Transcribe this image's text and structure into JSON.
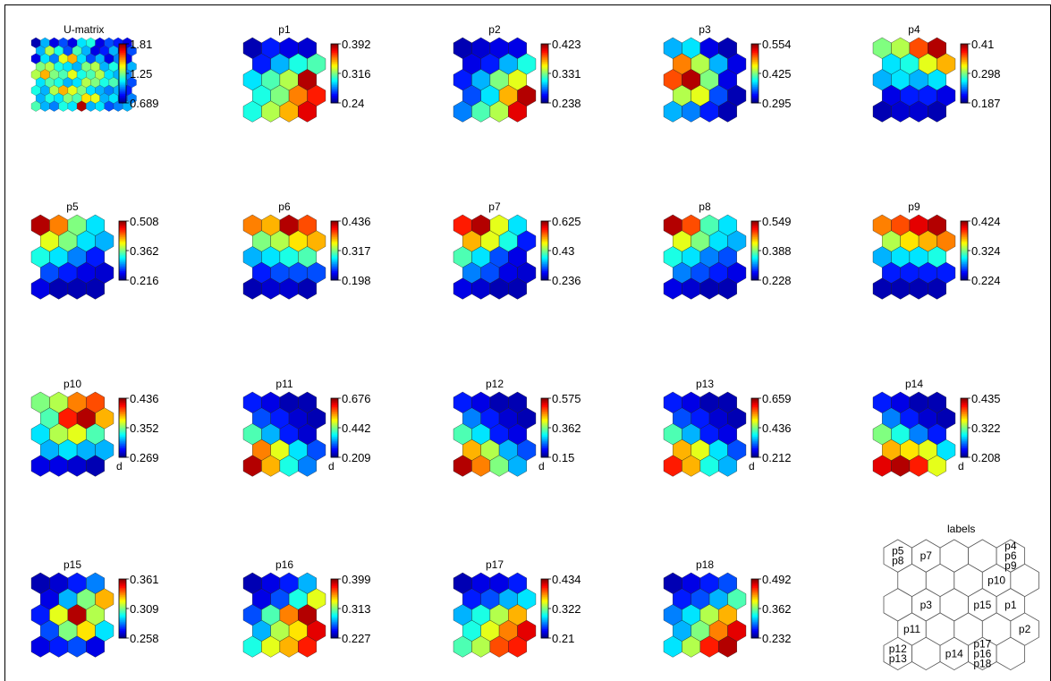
{
  "figure": {
    "colormap": "jet",
    "hex_outline": "#1a1a1a",
    "label_outline": "#555555"
  },
  "chart_data": [
    {
      "type": "heatmap",
      "title": "U-matrix",
      "colorbar_ticks": [
        "1.81",
        "1.25",
        "0.689"
      ],
      "range": [
        0.689,
        1.81
      ],
      "extra_label": "",
      "rows": 9,
      "cols": 11,
      "values": [
        [
          0.05,
          0.3,
          0.1,
          0.2,
          0.1,
          0.35,
          0.4,
          0.1,
          0.2,
          0.15,
          0.1
        ],
        [
          0.3,
          0.55,
          0.4,
          0.2,
          0.45,
          0.3,
          0.1,
          0.15,
          0.3,
          0.1,
          0.2
        ],
        [
          0.1,
          0.35,
          0.25,
          0.6,
          0.7,
          0.35,
          0.2,
          0.3,
          0.1,
          0.25,
          0.1
        ],
        [
          0.5,
          0.55,
          0.4,
          0.35,
          0.3,
          0.5,
          0.55,
          0.3,
          0.4,
          0.2,
          0.3
        ],
        [
          0.55,
          0.7,
          0.5,
          0.45,
          0.6,
          0.4,
          0.45,
          0.55,
          0.35,
          0.3,
          0.25
        ],
        [
          0.35,
          0.45,
          0.4,
          0.3,
          0.35,
          0.55,
          0.5,
          0.4,
          0.45,
          0.3,
          0.2
        ],
        [
          0.4,
          0.3,
          0.55,
          0.7,
          0.6,
          0.5,
          0.35,
          0.3,
          0.25,
          0.3,
          0.15
        ],
        [
          0.3,
          0.4,
          0.35,
          0.5,
          0.45,
          0.65,
          0.6,
          0.3,
          0.35,
          0.2,
          0.25
        ],
        [
          0.45,
          0.3,
          0.25,
          0.4,
          0.35,
          0.95,
          0.3,
          0.35,
          0.2,
          0.25,
          0.3
        ]
      ]
    },
    {
      "type": "heatmap",
      "title": "p1",
      "colorbar_ticks": [
        "0.392",
        "0.316",
        "0.24"
      ],
      "range": [
        0.24,
        0.392
      ],
      "extra_label": "",
      "rows": 5,
      "cols": 4,
      "values": [
        [
          0.05,
          0.15,
          0.1,
          0.08
        ],
        [
          0.15,
          0.3,
          0.4,
          0.45
        ],
        [
          0.35,
          0.45,
          0.55,
          0.95
        ],
        [
          0.4,
          0.5,
          0.75,
          0.85
        ],
        [
          0.4,
          0.55,
          0.7,
          0.9
        ]
      ]
    },
    {
      "type": "heatmap",
      "title": "p2",
      "colorbar_ticks": [
        "0.423",
        "0.331",
        "0.238"
      ],
      "range": [
        0.238,
        0.423
      ],
      "extra_label": "",
      "rows": 5,
      "cols": 4,
      "values": [
        [
          0.05,
          0.08,
          0.1,
          0.1
        ],
        [
          0.1,
          0.15,
          0.3,
          0.4
        ],
        [
          0.15,
          0.3,
          0.5,
          0.6
        ],
        [
          0.2,
          0.35,
          0.7,
          0.95
        ],
        [
          0.25,
          0.45,
          0.55,
          0.9
        ]
      ]
    },
    {
      "type": "heatmap",
      "title": "p3",
      "colorbar_ticks": [
        "0.554",
        "0.425",
        "0.295"
      ],
      "range": [
        0.295,
        0.554
      ],
      "extra_label": "",
      "rows": 5,
      "cols": 4,
      "values": [
        [
          0.3,
          0.35,
          0.1,
          0.05
        ],
        [
          0.75,
          0.55,
          0.3,
          0.1
        ],
        [
          0.8,
          0.95,
          0.5,
          0.1
        ],
        [
          0.55,
          0.6,
          0.2,
          0.05
        ],
        [
          0.3,
          0.25,
          0.15,
          0.05
        ]
      ]
    },
    {
      "type": "heatmap",
      "title": "p4",
      "colorbar_ticks": [
        "0.41",
        "0.298",
        "0.187"
      ],
      "range": [
        0.187,
        0.41
      ],
      "extra_label": "",
      "rows": 5,
      "cols": 4,
      "values": [
        [
          0.5,
          0.55,
          0.8,
          0.95
        ],
        [
          0.35,
          0.4,
          0.6,
          0.7
        ],
        [
          0.3,
          0.35,
          0.3,
          0.35
        ],
        [
          0.1,
          0.15,
          0.15,
          0.1
        ],
        [
          0.05,
          0.08,
          0.08,
          0.05
        ]
      ]
    },
    {
      "type": "heatmap",
      "title": "p5",
      "colorbar_ticks": [
        "0.508",
        "0.362",
        "0.216"
      ],
      "range": [
        0.216,
        0.508
      ],
      "extra_label": "",
      "rows": 5,
      "cols": 4,
      "values": [
        [
          0.95,
          0.75,
          0.5,
          0.35
        ],
        [
          0.6,
          0.5,
          0.35,
          0.3
        ],
        [
          0.4,
          0.35,
          0.25,
          0.15
        ],
        [
          0.2,
          0.15,
          0.1,
          0.08
        ],
        [
          0.1,
          0.05,
          0.05,
          0.05
        ]
      ]
    },
    {
      "type": "heatmap",
      "title": "p6",
      "colorbar_ticks": [
        "0.436",
        "0.317",
        "0.198"
      ],
      "range": [
        0.198,
        0.436
      ],
      "extra_label": "",
      "rows": 5,
      "cols": 4,
      "values": [
        [
          0.75,
          0.7,
          0.95,
          0.8
        ],
        [
          0.5,
          0.55,
          0.65,
          0.7
        ],
        [
          0.3,
          0.35,
          0.4,
          0.45
        ],
        [
          0.15,
          0.2,
          0.2,
          0.2
        ],
        [
          0.05,
          0.08,
          0.08,
          0.05
        ]
      ]
    },
    {
      "type": "heatmap",
      "title": "p7",
      "colorbar_ticks": [
        "0.625",
        "0.43",
        "0.236"
      ],
      "range": [
        0.236,
        0.625
      ],
      "extra_label": "",
      "rows": 5,
      "cols": 4,
      "values": [
        [
          0.85,
          0.95,
          0.6,
          0.35
        ],
        [
          0.7,
          0.6,
          0.4,
          0.15
        ],
        [
          0.45,
          0.35,
          0.2,
          0.1
        ],
        [
          0.25,
          0.2,
          0.1,
          0.08
        ],
        [
          0.1,
          0.08,
          0.05,
          0.05
        ]
      ]
    },
    {
      "type": "heatmap",
      "title": "p8",
      "colorbar_ticks": [
        "0.549",
        "0.388",
        "0.228"
      ],
      "range": [
        0.228,
        0.549
      ],
      "extra_label": "",
      "rows": 5,
      "cols": 4,
      "values": [
        [
          0.95,
          0.8,
          0.45,
          0.35
        ],
        [
          0.6,
          0.5,
          0.35,
          0.3
        ],
        [
          0.4,
          0.35,
          0.25,
          0.2
        ],
        [
          0.25,
          0.2,
          0.15,
          0.1
        ],
        [
          0.1,
          0.08,
          0.05,
          0.05
        ]
      ]
    },
    {
      "type": "heatmap",
      "title": "p9",
      "colorbar_ticks": [
        "0.424",
        "0.324",
        "0.224"
      ],
      "range": [
        0.224,
        0.424
      ],
      "extra_label": "",
      "rows": 5,
      "cols": 4,
      "values": [
        [
          0.75,
          0.8,
          0.9,
          0.95
        ],
        [
          0.55,
          0.65,
          0.7,
          0.75
        ],
        [
          0.3,
          0.35,
          0.35,
          0.4
        ],
        [
          0.15,
          0.15,
          0.15,
          0.15
        ],
        [
          0.05,
          0.05,
          0.05,
          0.05
        ]
      ]
    },
    {
      "type": "heatmap",
      "title": "p10",
      "colorbar_ticks": [
        "0.436",
        "0.352",
        "0.269"
      ],
      "range": [
        0.269,
        0.436
      ],
      "extra_label": "",
      "rows": 5,
      "cols": 4,
      "values": [
        [
          0.5,
          0.55,
          0.75,
          0.8
        ],
        [
          0.45,
          0.85,
          0.95,
          0.7
        ],
        [
          0.35,
          0.55,
          0.6,
          0.45
        ],
        [
          0.3,
          0.35,
          0.3,
          0.3
        ],
        [
          0.1,
          0.1,
          0.08,
          0.05
        ]
      ]
    },
    {
      "type": "heatmap",
      "title": "p11",
      "colorbar_ticks": [
        "0.676",
        "0.442",
        "0.209"
      ],
      "range": [
        0.209,
        0.676
      ],
      "extra_label": "d",
      "rows": 5,
      "cols": 4,
      "values": [
        [
          0.15,
          0.1,
          0.05,
          0.05
        ],
        [
          0.2,
          0.15,
          0.08,
          0.05
        ],
        [
          0.45,
          0.3,
          0.15,
          0.08
        ],
        [
          0.75,
          0.6,
          0.35,
          0.2
        ],
        [
          0.95,
          0.7,
          0.4,
          0.25
        ]
      ]
    },
    {
      "type": "heatmap",
      "title": "p12",
      "colorbar_ticks": [
        "0.575",
        "0.362",
        "0.15"
      ],
      "range": [
        0.15,
        0.575
      ],
      "extra_label": "",
      "rows": 5,
      "cols": 4,
      "values": [
        [
          0.15,
          0.1,
          0.05,
          0.05
        ],
        [
          0.25,
          0.15,
          0.08,
          0.05
        ],
        [
          0.45,
          0.35,
          0.15,
          0.1
        ],
        [
          0.7,
          0.55,
          0.3,
          0.2
        ],
        [
          0.95,
          0.75,
          0.5,
          0.3
        ]
      ]
    },
    {
      "type": "heatmap",
      "title": "p13",
      "colorbar_ticks": [
        "0.659",
        "0.436",
        "0.212"
      ],
      "range": [
        0.212,
        0.659
      ],
      "extra_label": "",
      "rows": 5,
      "cols": 4,
      "values": [
        [
          0.15,
          0.1,
          0.05,
          0.05
        ],
        [
          0.2,
          0.15,
          0.08,
          0.05
        ],
        [
          0.45,
          0.3,
          0.15,
          0.1
        ],
        [
          0.7,
          0.6,
          0.35,
          0.2
        ],
        [
          0.85,
          0.7,
          0.4,
          0.3
        ]
      ]
    },
    {
      "type": "heatmap",
      "title": "p14",
      "colorbar_ticks": [
        "0.435",
        "0.322",
        "0.208"
      ],
      "range": [
        0.208,
        0.435
      ],
      "extra_label": "d",
      "rows": 5,
      "cols": 4,
      "values": [
        [
          0.15,
          0.1,
          0.05,
          0.05
        ],
        [
          0.25,
          0.15,
          0.08,
          0.05
        ],
        [
          0.5,
          0.4,
          0.25,
          0.15
        ],
        [
          0.7,
          0.65,
          0.6,
          0.35
        ],
        [
          0.9,
          0.95,
          0.85,
          0.6
        ]
      ]
    },
    {
      "type": "heatmap",
      "title": "p15",
      "colorbar_ticks": [
        "0.361",
        "0.309",
        "0.258"
      ],
      "range": [
        0.258,
        0.361
      ],
      "extra_label": "",
      "rows": 5,
      "cols": 4,
      "values": [
        [
          0.05,
          0.08,
          0.15,
          0.25
        ],
        [
          0.1,
          0.3,
          0.5,
          0.7
        ],
        [
          0.15,
          0.6,
          0.95,
          0.55
        ],
        [
          0.2,
          0.5,
          0.65,
          0.35
        ],
        [
          0.1,
          0.15,
          0.2,
          0.1
        ]
      ]
    },
    {
      "type": "heatmap",
      "title": "p16",
      "colorbar_ticks": [
        "0.399",
        "0.313",
        "0.227"
      ],
      "range": [
        0.227,
        0.399
      ],
      "extra_label": "",
      "rows": 5,
      "cols": 4,
      "values": [
        [
          0.05,
          0.1,
          0.15,
          0.3
        ],
        [
          0.1,
          0.2,
          0.4,
          0.6
        ],
        [
          0.2,
          0.45,
          0.75,
          0.95
        ],
        [
          0.3,
          0.55,
          0.65,
          0.9
        ],
        [
          0.4,
          0.6,
          0.7,
          0.85
        ]
      ]
    },
    {
      "type": "heatmap",
      "title": "p17",
      "colorbar_ticks": [
        "0.434",
        "0.322",
        "0.21"
      ],
      "range": [
        0.21,
        0.434
      ],
      "extra_label": "",
      "rows": 5,
      "cols": 4,
      "values": [
        [
          0.05,
          0.1,
          0.1,
          0.15
        ],
        [
          0.15,
          0.2,
          0.3,
          0.35
        ],
        [
          0.3,
          0.4,
          0.55,
          0.7
        ],
        [
          0.4,
          0.6,
          0.75,
          0.9
        ],
        [
          0.45,
          0.55,
          0.8,
          0.85
        ]
      ]
    },
    {
      "type": "heatmap",
      "title": "p18",
      "colorbar_ticks": [
        "0.492",
        "0.362",
        "0.232"
      ],
      "range": [
        0.232,
        0.492
      ],
      "extra_label": "",
      "rows": 5,
      "cols": 4,
      "values": [
        [
          0.05,
          0.1,
          0.15,
          0.2
        ],
        [
          0.15,
          0.2,
          0.3,
          0.45
        ],
        [
          0.25,
          0.35,
          0.55,
          0.7
        ],
        [
          0.3,
          0.5,
          0.75,
          0.9
        ],
        [
          0.35,
          0.55,
          0.85,
          0.95
        ]
      ]
    }
  ],
  "labels_panel": {
    "title": "labels",
    "rows": 5,
    "cols": 5,
    "cell_labels": [
      {
        "row": 0,
        "col": 0,
        "text": "p5"
      },
      {
        "row": 0,
        "col": 0,
        "text": "p8"
      },
      {
        "row": 0,
        "col": 1,
        "text": "p7"
      },
      {
        "row": 0,
        "col": 4,
        "text": "p4"
      },
      {
        "row": 0,
        "col": 4,
        "text": "p6"
      },
      {
        "row": 0,
        "col": 4,
        "text": "p9"
      },
      {
        "row": 1,
        "col": 3,
        "text": "p10"
      },
      {
        "row": 2,
        "col": 1,
        "text": "p3"
      },
      {
        "row": 2,
        "col": 3,
        "text": "p15"
      },
      {
        "row": 2,
        "col": 4,
        "text": "p1"
      },
      {
        "row": 3,
        "col": 4,
        "text": "p2"
      },
      {
        "row": 3,
        "col": 0,
        "text": "p11"
      },
      {
        "row": 4,
        "col": 0,
        "text": "p12"
      },
      {
        "row": 4,
        "col": 0,
        "text": "p13"
      },
      {
        "row": 4,
        "col": 2,
        "text": "p14"
      },
      {
        "row": 4,
        "col": 3,
        "text": "p17"
      },
      {
        "row": 4,
        "col": 3,
        "text": "p16"
      },
      {
        "row": 4,
        "col": 3,
        "text": "p18"
      }
    ]
  }
}
